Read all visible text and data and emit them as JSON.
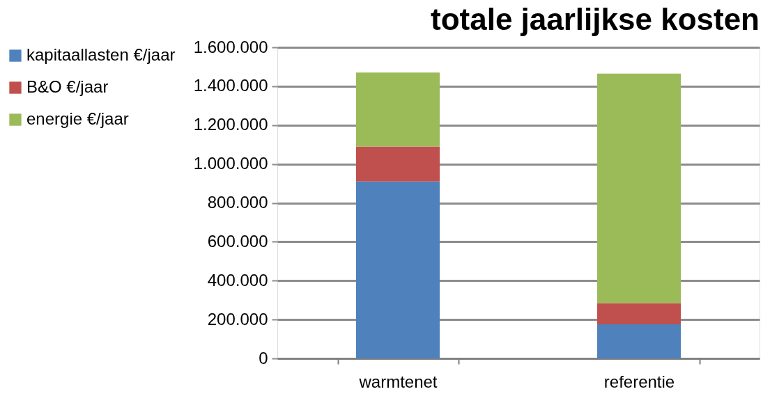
{
  "chart_data": {
    "type": "bar",
    "title": "totale jaarlijkse kosten",
    "stacked": true,
    "categories": [
      "warmtenet",
      "referentie"
    ],
    "series": [
      {
        "name": "kapitaallasten  €/jaar",
        "color": "#4f81bd",
        "values": [
          910000,
          175000
        ]
      },
      {
        "name": "B&O €/jaar",
        "color": "#c0504d",
        "values": [
          180000,
          110000
        ]
      },
      {
        "name": "energie €/jaar",
        "color": "#9bbb59",
        "values": [
          380000,
          1180000
        ]
      }
    ],
    "ylim": [
      0,
      1600000
    ],
    "yticks": [
      0,
      {
        "value": 200000,
        "label": "200.000"
      },
      {
        "value": 400000,
        "label": "400.000"
      },
      {
        "value": 600000,
        "label": "600.000"
      },
      {
        "value": 800000,
        "label": "800.000"
      },
      {
        "value": 1000000,
        "label": "1.000.000"
      },
      {
        "value": 1200000,
        "label": "1.200.000"
      },
      {
        "value": 1400000,
        "label": "1.400.000"
      },
      {
        "value": 1600000,
        "label": "1.600.000"
      }
    ],
    "grid": "y",
    "legend": "left"
  }
}
